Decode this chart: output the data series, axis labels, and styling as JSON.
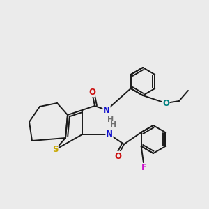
{
  "background_color": "#ebebeb",
  "bond_color": "#1a1a1a",
  "atom_colors": {
    "S": "#c8a800",
    "N": "#1010cc",
    "O": "#cc1010",
    "F": "#cc10cc",
    "OEt": "#008080",
    "H": "#707070",
    "C": "#1a1a1a"
  },
  "lw": 1.4,
  "fontsize": 8.5
}
